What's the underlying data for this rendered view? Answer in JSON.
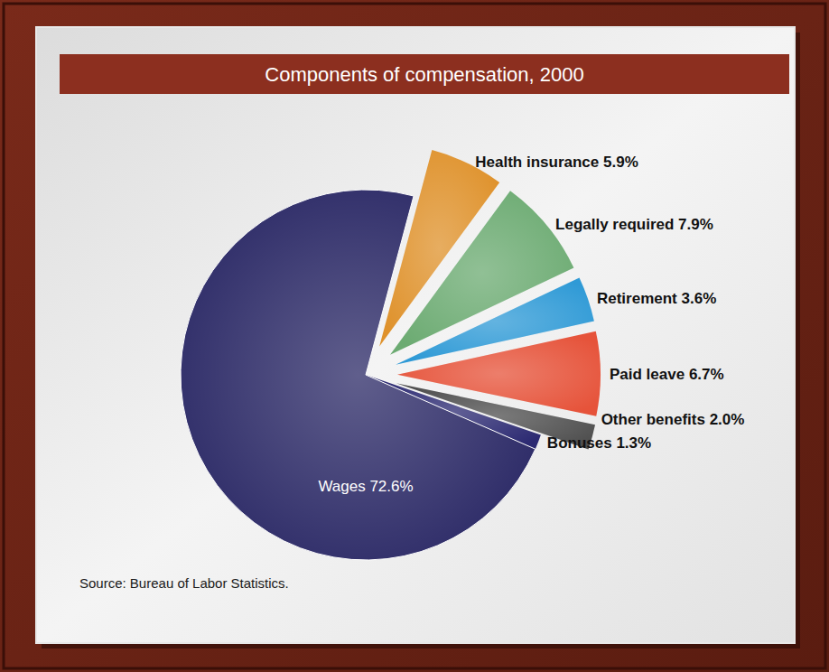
{
  "chart_data": {
    "type": "pie",
    "title": "Components of compensation, 2000",
    "source": "Source: Bureau of Labor Statistics.",
    "categories": [
      "Health insurance",
      "Legally required",
      "Retirement",
      "Paid leave",
      "Other benefits",
      "Bonuses",
      "Wages"
    ],
    "values": [
      5.9,
      7.9,
      3.6,
      6.7,
      2.0,
      1.3,
      72.6
    ],
    "value_labels": [
      "5.9%",
      "7.9%",
      "3.6%",
      "6.7%",
      "2.0%",
      "1.3%",
      "72.6%"
    ],
    "colors": [
      "#df922c",
      "#6cab72",
      "#2f9ad6",
      "#e6533a",
      "#4f4f4f",
      "#2c2a72",
      "#2b2966"
    ],
    "data_labels": true
  }
}
